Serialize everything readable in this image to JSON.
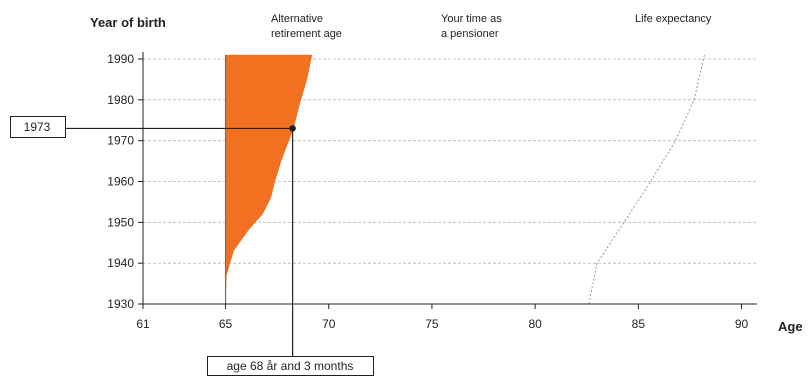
{
  "chart_data": {
    "type": "area",
    "ylabel": "Year of birth",
    "xlabel": "Age",
    "xlim": [
      61,
      91
    ],
    "ylim": [
      1930,
      1992
    ],
    "x_ticks": [
      "61",
      "65",
      "70",
      "75",
      "80",
      "85",
      "90"
    ],
    "y_ticks": [
      "1930",
      "1940",
      "1950",
      "1960",
      "1970",
      "1980",
      "1990"
    ],
    "grid": "horizontal dashed",
    "headers": [
      [
        "Alternative",
        "retirement age"
      ],
      [
        "Your time as",
        "a pensioner"
      ],
      [
        "Life expectancy"
      ]
    ],
    "series": [
      {
        "name": "Alternative retirement age",
        "style": "filled area from age 65",
        "color": "#f37021",
        "points": [
          [
            65,
            1930
          ],
          [
            65.05,
            1937
          ],
          [
            65.4,
            1943
          ],
          [
            66.1,
            1948
          ],
          [
            66.8,
            1952
          ],
          [
            67.2,
            1956
          ],
          [
            67.4,
            1960
          ],
          [
            67.7,
            1965
          ],
          [
            68.0,
            1969
          ],
          [
            68.3,
            1973
          ],
          [
            68.6,
            1979
          ],
          [
            68.95,
            1985
          ],
          [
            69.2,
            1991
          ]
        ]
      },
      {
        "name": "Life expectancy",
        "style": "dotted line",
        "color": "#9a9a9a",
        "points": [
          [
            82.6,
            1930
          ],
          [
            83.0,
            1940
          ],
          [
            84.3,
            1950
          ],
          [
            85.6,
            1960
          ],
          [
            86.8,
            1970
          ],
          [
            87.7,
            1980
          ],
          [
            88.2,
            1991
          ]
        ]
      }
    ],
    "highlight": {
      "year_label": "1973",
      "age_label": "age 68 år and 3 months",
      "year": 1973,
      "age": 68.25
    }
  }
}
